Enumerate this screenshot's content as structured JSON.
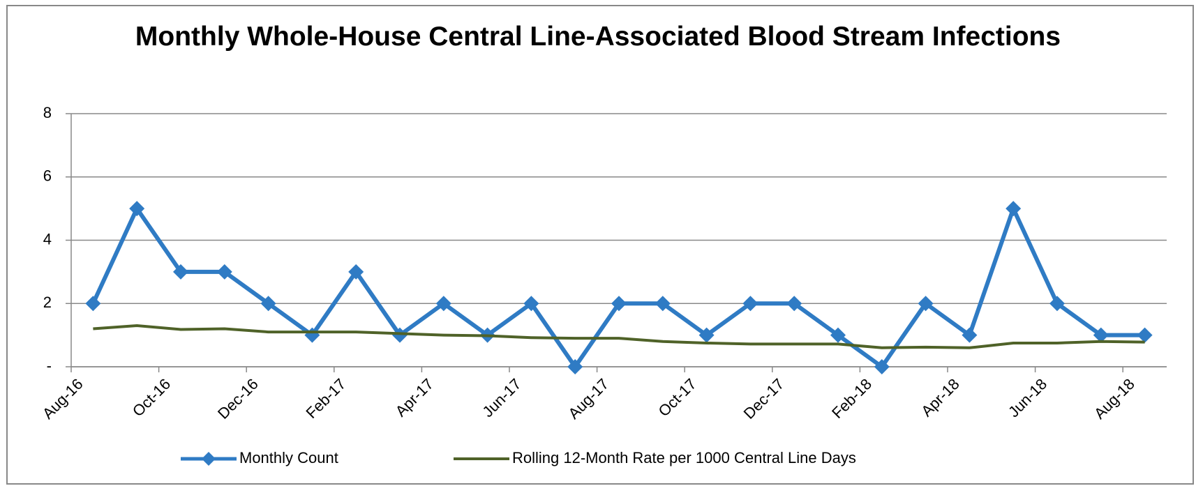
{
  "chart_data": {
    "type": "line",
    "title": "Monthly Whole-House Central Line-Associated Blood Stream Infections",
    "categories": [
      "Aug-16",
      null,
      "Oct-16",
      null,
      "Dec-16",
      null,
      "Feb-17",
      null,
      "Apr-17",
      null,
      "Jun-17",
      null,
      "Aug-17",
      null,
      "Oct-17",
      null,
      "Dec-17",
      null,
      "Feb-18",
      null,
      "Apr-18",
      null,
      "Jun-18",
      null,
      "Aug-18"
    ],
    "series": [
      {
        "name": "Monthly Count",
        "color": "#2f7bc4",
        "marker": "diamond",
        "values": [
          2,
          5,
          3,
          3,
          2,
          1,
          3,
          1,
          2,
          1,
          2,
          0,
          2,
          2,
          1,
          2,
          2,
          1,
          0,
          2,
          1,
          5,
          2,
          1,
          1
        ]
      },
      {
        "name": "Rolling 12-Month Rate per 1000 Central Line Days",
        "color": "#4f6228",
        "values": [
          1.2,
          1.3,
          1.18,
          1.2,
          1.1,
          1.1,
          1.1,
          1.05,
          1.0,
          0.98,
          0.92,
          0.9,
          0.9,
          0.8,
          0.75,
          0.72,
          0.72,
          0.72,
          0.6,
          0.62,
          0.6,
          0.75,
          0.75,
          0.8,
          0.78
        ]
      }
    ],
    "ylim": [
      0,
      8
    ],
    "yticks": [
      {
        "value": 0,
        "label": "-"
      },
      2,
      4,
      6,
      8
    ],
    "grid": true,
    "legend": "bottom"
  }
}
